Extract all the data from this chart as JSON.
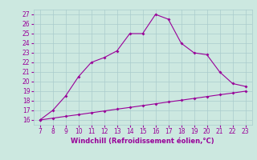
{
  "xlabel": "Windchill (Refroidissement éolien,°C)",
  "x_values": [
    7,
    8,
    9,
    10,
    11,
    12,
    13,
    14,
    15,
    16,
    17,
    18,
    19,
    20,
    21,
    22,
    23
  ],
  "curve_y": [
    16,
    17,
    18.5,
    20.5,
    22,
    22.5,
    23.2,
    25,
    25,
    27,
    26.5,
    24,
    23,
    22.8,
    21,
    19.8,
    19.5
  ],
  "line_y": [
    16.0,
    16.19,
    16.38,
    16.56,
    16.75,
    16.94,
    17.13,
    17.31,
    17.5,
    17.69,
    17.88,
    18.06,
    18.25,
    18.44,
    18.63,
    18.81,
    19.0
  ],
  "ylim": [
    15.5,
    27.5
  ],
  "xlim": [
    6.5,
    23.5
  ],
  "yticks": [
    16,
    17,
    18,
    19,
    20,
    21,
    22,
    23,
    24,
    25,
    26,
    27
  ],
  "xticks": [
    7,
    8,
    9,
    10,
    11,
    12,
    13,
    14,
    15,
    16,
    17,
    18,
    19,
    20,
    21,
    22,
    23
  ],
  "line_color": "#990099",
  "bg_color": "#cce8e0",
  "grid_color": "#aacccc",
  "text_color": "#990099"
}
